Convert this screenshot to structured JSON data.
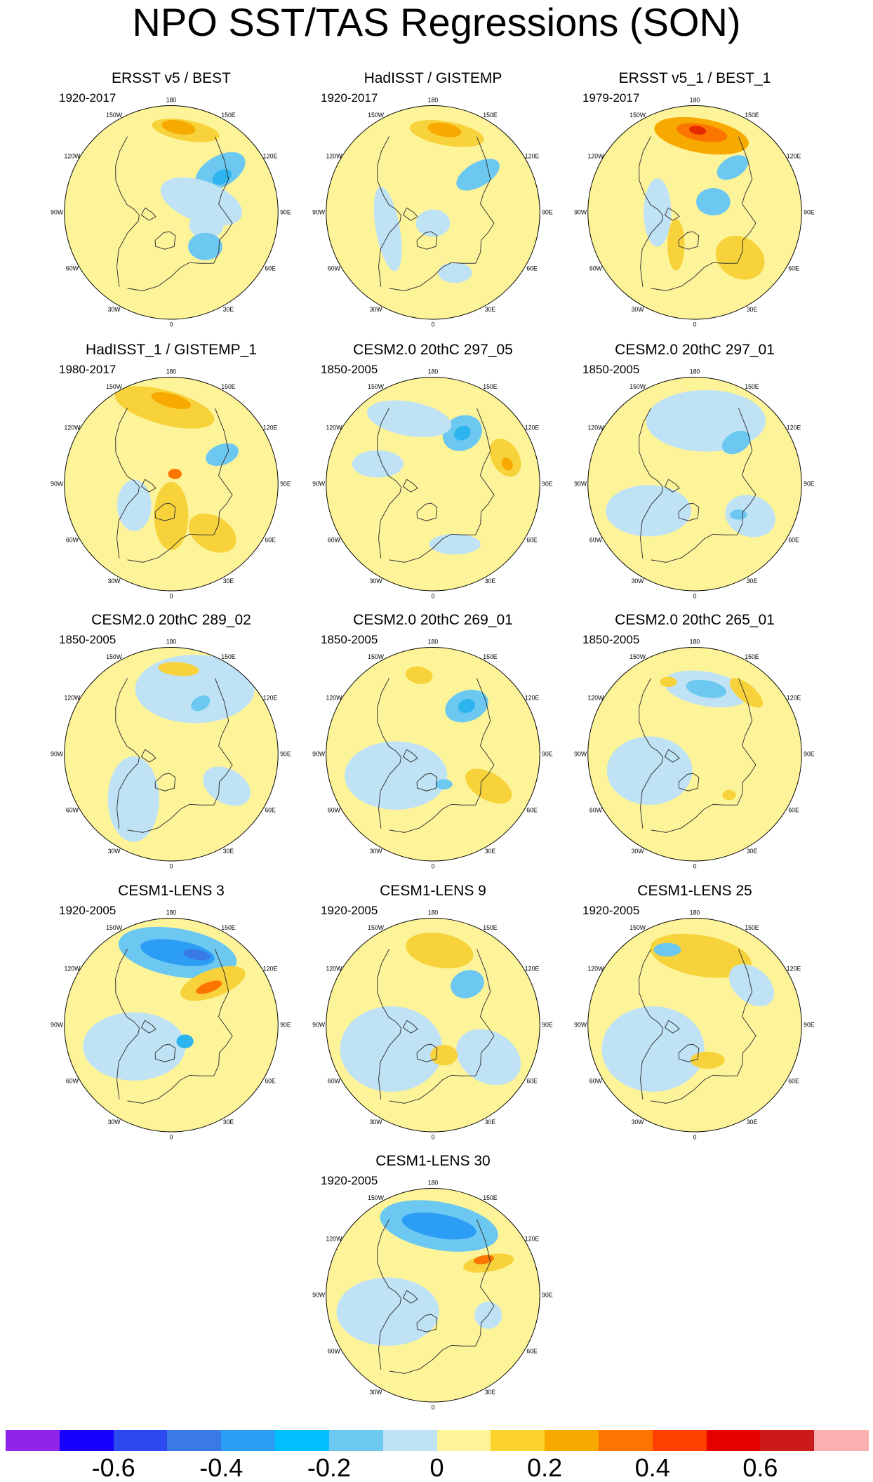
{
  "title": "NPO SST/TAS Regressions (SON)",
  "map_labels": {
    "top": "180",
    "upper_left": "150W",
    "upper_right": "150E",
    "mid_upper_left": "120W",
    "mid_upper_right": "120E",
    "left": "90W",
    "right": "90E",
    "mid_lower_left": "60W",
    "mid_lower_right": "60E",
    "lower_left": "30W",
    "lower_right": "30E",
    "bottom": "0"
  },
  "panels": [
    {
      "title": "ERSST v5 / BEST",
      "years": "1920-2017",
      "blobs": [
        {
          "a": 130,
          "d": 0.6,
          "rx": 0.16,
          "ry": 0.09,
          "rot": -30,
          "c": "#6cc8f0"
        },
        {
          "a": 125,
          "d": 0.58,
          "rx": 0.06,
          "ry": 0.04,
          "rot": -30,
          "c": "#2cb4ee"
        },
        {
          "a": 170,
          "d": 0.78,
          "rx": 0.2,
          "ry": 0.06,
          "rot": 10,
          "c": "#f8d23a"
        },
        {
          "a": 175,
          "d": 0.8,
          "rx": 0.1,
          "ry": 0.04,
          "rot": 10,
          "c": "#f7a900"
        },
        {
          "a": 110,
          "d": 0.3,
          "rx": 0.25,
          "ry": 0.12,
          "rot": 20,
          "c": "#bfe2f5"
        },
        {
          "a": 70,
          "d": 0.35,
          "rx": 0.1,
          "ry": 0.08,
          "rot": 0,
          "c": "#bfe2f5"
        },
        {
          "a": 45,
          "d": 0.45,
          "rx": 0.1,
          "ry": 0.08,
          "rot": 0,
          "c": "#6cc8f0"
        }
      ]
    },
    {
      "title": "HadISST / GISTEMP",
      "years": "1920-2017",
      "blobs": [
        {
          "a": 130,
          "d": 0.55,
          "rx": 0.14,
          "ry": 0.07,
          "rot": -30,
          "c": "#6cc8f0"
        },
        {
          "a": 170,
          "d": 0.75,
          "rx": 0.22,
          "ry": 0.07,
          "rot": 10,
          "c": "#f8d23a"
        },
        {
          "a": 172,
          "d": 0.78,
          "rx": 0.1,
          "ry": 0.04,
          "rot": 10,
          "c": "#f7a900"
        },
        {
          "a": 290,
          "d": 0.45,
          "rx": 0.07,
          "ry": 0.25,
          "rot": -10,
          "c": "#bfe2f5"
        },
        {
          "a": 20,
          "d": 0.6,
          "rx": 0.1,
          "ry": 0.06,
          "rot": 0,
          "c": "#bfe2f5"
        },
        {
          "a": 0,
          "d": 0.1,
          "rx": 0.1,
          "ry": 0.08,
          "rot": 0,
          "c": "#bfe2f5"
        }
      ]
    },
    {
      "title": "ERSST v5_1 / BEST_1",
      "years": "1979-2017",
      "blobs": [
        {
          "a": 175,
          "d": 0.72,
          "rx": 0.28,
          "ry": 0.1,
          "rot": 10,
          "c": "#f7a900"
        },
        {
          "a": 175,
          "d": 0.75,
          "rx": 0.15,
          "ry": 0.05,
          "rot": 10,
          "c": "#fb7500"
        },
        {
          "a": 178,
          "d": 0.77,
          "rx": 0.05,
          "ry": 0.025,
          "rot": 10,
          "c": "#e62b00"
        },
        {
          "a": 140,
          "d": 0.55,
          "rx": 0.1,
          "ry": 0.06,
          "rot": -30,
          "c": "#6cc8f0"
        },
        {
          "a": 45,
          "d": 0.6,
          "rx": 0.15,
          "ry": 0.12,
          "rot": 30,
          "c": "#f8d23a"
        },
        {
          "a": 120,
          "d": 0.2,
          "rx": 0.1,
          "ry": 0.08,
          "rot": 0,
          "c": "#6cc8f0"
        },
        {
          "a": 270,
          "d": 0.35,
          "rx": 0.08,
          "ry": 0.2,
          "rot": 0,
          "c": "#bfe2f5"
        },
        {
          "a": 330,
          "d": 0.35,
          "rx": 0.05,
          "ry": 0.15,
          "rot": 0,
          "c": "#f8d23a"
        }
      ]
    },
    {
      "title": "HadISST_1 / GISTEMP_1",
      "years": "1980-2017",
      "blobs": [
        {
          "a": 185,
          "d": 0.72,
          "rx": 0.3,
          "ry": 0.1,
          "rot": 15,
          "c": "#f8d23a"
        },
        {
          "a": 180,
          "d": 0.78,
          "rx": 0.12,
          "ry": 0.04,
          "rot": 15,
          "c": "#f7a900"
        },
        {
          "a": 120,
          "d": 0.55,
          "rx": 0.1,
          "ry": 0.06,
          "rot": -20,
          "c": "#6cc8f0"
        },
        {
          "a": 0,
          "d": 0.3,
          "rx": 0.1,
          "ry": 0.2,
          "rot": 0,
          "c": "#f8d23a"
        },
        {
          "a": 40,
          "d": 0.6,
          "rx": 0.15,
          "ry": 0.1,
          "rot": 30,
          "c": "#f8d23a"
        },
        {
          "a": 300,
          "d": 0.4,
          "rx": 0.1,
          "ry": 0.15,
          "rot": 0,
          "c": "#bfe2f5"
        },
        {
          "a": 160,
          "d": 0.1,
          "rx": 0.04,
          "ry": 0.03,
          "rot": 0,
          "c": "#fb7500"
        }
      ]
    },
    {
      "title": "CESM2.0 20thC 297_05",
      "years": "1850-2005",
      "blobs": [
        {
          "a": 150,
          "d": 0.55,
          "rx": 0.12,
          "ry": 0.1,
          "rot": -30,
          "c": "#6cc8f0"
        },
        {
          "a": 150,
          "d": 0.55,
          "rx": 0.05,
          "ry": 0.04,
          "rot": -30,
          "c": "#2cb4ee"
        },
        {
          "a": 110,
          "d": 0.72,
          "rx": 0.12,
          "ry": 0.08,
          "rot": 60,
          "c": "#f8d23a"
        },
        {
          "a": 105,
          "d": 0.72,
          "rx": 0.04,
          "ry": 0.03,
          "rot": 60,
          "c": "#f7a900"
        },
        {
          "a": 200,
          "d": 0.65,
          "rx": 0.25,
          "ry": 0.1,
          "rot": 10,
          "c": "#bfe2f5"
        },
        {
          "a": 250,
          "d": 0.55,
          "rx": 0.15,
          "ry": 0.08,
          "rot": 0,
          "c": "#bfe2f5"
        },
        {
          "a": 20,
          "d": 0.6,
          "rx": 0.15,
          "ry": 0.06,
          "rot": 0,
          "c": "#bfe2f5"
        }
      ]
    },
    {
      "title": "CESM2.0 20thC 297_01",
      "years": "1850-2005",
      "blobs": [
        {
          "a": 170,
          "d": 0.6,
          "rx": 0.35,
          "ry": 0.18,
          "rot": 0,
          "c": "#bfe2f5"
        },
        {
          "a": 135,
          "d": 0.55,
          "rx": 0.09,
          "ry": 0.06,
          "rot": -30,
          "c": "#6cc8f0"
        },
        {
          "a": 60,
          "d": 0.6,
          "rx": 0.15,
          "ry": 0.12,
          "rot": 20,
          "c": "#bfe2f5"
        },
        {
          "a": 300,
          "d": 0.5,
          "rx": 0.25,
          "ry": 0.15,
          "rot": 0,
          "c": "#bfe2f5"
        },
        {
          "a": 55,
          "d": 0.5,
          "rx": 0.05,
          "ry": 0.03,
          "rot": 0,
          "c": "#6cc8f0"
        }
      ]
    },
    {
      "title": "CESM2.0 20thC 289_02",
      "years": "1850-2005",
      "blobs": [
        {
          "a": 160,
          "d": 0.65,
          "rx": 0.35,
          "ry": 0.2,
          "rot": 0,
          "c": "#bfe2f5"
        },
        {
          "a": 150,
          "d": 0.55,
          "rx": 0.06,
          "ry": 0.04,
          "rot": -30,
          "c": "#6cc8f0"
        },
        {
          "a": 175,
          "d": 0.8,
          "rx": 0.12,
          "ry": 0.04,
          "rot": 5,
          "c": "#f8d23a"
        },
        {
          "a": 320,
          "d": 0.55,
          "rx": 0.15,
          "ry": 0.25,
          "rot": 0,
          "c": "#bfe2f5"
        },
        {
          "a": 60,
          "d": 0.6,
          "rx": 0.15,
          "ry": 0.1,
          "rot": 30,
          "c": "#bfe2f5"
        }
      ]
    },
    {
      "title": "CESM2.0 20thC 269_01",
      "years": "1850-2005",
      "blobs": [
        {
          "a": 145,
          "d": 0.55,
          "rx": 0.13,
          "ry": 0.09,
          "rot": -20,
          "c": "#6cc8f0"
        },
        {
          "a": 145,
          "d": 0.55,
          "rx": 0.05,
          "ry": 0.04,
          "rot": -20,
          "c": "#2cb4ee"
        },
        {
          "a": 190,
          "d": 0.75,
          "rx": 0.08,
          "ry": 0.05,
          "rot": 10,
          "c": "#f8d23a"
        },
        {
          "a": 60,
          "d": 0.6,
          "rx": 0.15,
          "ry": 0.08,
          "rot": 30,
          "c": "#f8d23a"
        },
        {
          "a": 300,
          "d": 0.4,
          "rx": 0.3,
          "ry": 0.2,
          "rot": 0,
          "c": "#bfe2f5"
        },
        {
          "a": 20,
          "d": 0.3,
          "rx": 0.05,
          "ry": 0.03,
          "rot": 0,
          "c": "#6cc8f0"
        }
      ]
    },
    {
      "title": "CESM2.0 20thC 265_01",
      "years": "1850-2005",
      "blobs": [
        {
          "a": 170,
          "d": 0.62,
          "rx": 0.25,
          "ry": 0.1,
          "rot": 10,
          "c": "#bfe2f5"
        },
        {
          "a": 170,
          "d": 0.62,
          "rx": 0.12,
          "ry": 0.05,
          "rot": 10,
          "c": "#6cc8f0"
        },
        {
          "a": 140,
          "d": 0.75,
          "rx": 0.12,
          "ry": 0.05,
          "rot": 40,
          "c": "#f8d23a"
        },
        {
          "a": 200,
          "d": 0.72,
          "rx": 0.05,
          "ry": 0.03,
          "rot": 0,
          "c": "#f8d23a"
        },
        {
          "a": 290,
          "d": 0.45,
          "rx": 0.25,
          "ry": 0.2,
          "rot": 0,
          "c": "#bfe2f5"
        },
        {
          "a": 40,
          "d": 0.5,
          "rx": 0.04,
          "ry": 0.03,
          "rot": 0,
          "c": "#f8d23a"
        }
      ]
    },
    {
      "title": "CESM1-LENS 3",
      "years": "1920-2005",
      "blobs": [
        {
          "a": 175,
          "d": 0.68,
          "rx": 0.35,
          "ry": 0.14,
          "rot": 10,
          "c": "#6cc8f0"
        },
        {
          "a": 175,
          "d": 0.68,
          "rx": 0.22,
          "ry": 0.07,
          "rot": 10,
          "c": "#2c9df5"
        },
        {
          "a": 160,
          "d": 0.7,
          "rx": 0.08,
          "ry": 0.03,
          "rot": 10,
          "c": "#3a7ae6"
        },
        {
          "a": 135,
          "d": 0.55,
          "rx": 0.2,
          "ry": 0.08,
          "rot": -20,
          "c": "#f8d23a"
        },
        {
          "a": 135,
          "d": 0.5,
          "rx": 0.08,
          "ry": 0.03,
          "rot": -20,
          "c": "#fb7500"
        },
        {
          "a": 300,
          "d": 0.4,
          "rx": 0.3,
          "ry": 0.2,
          "rot": 0,
          "c": "#bfe2f5"
        },
        {
          "a": 40,
          "d": 0.2,
          "rx": 0.05,
          "ry": 0.04,
          "rot": 0,
          "c": "#2cb4ee"
        }
      ]
    },
    {
      "title": "CESM1-LENS 9",
      "years": "1920-2005",
      "blobs": [
        {
          "a": 175,
          "d": 0.7,
          "rx": 0.12,
          "ry": 0.06,
          "rot": 10,
          "c": "#f7a900"
        },
        {
          "a": 175,
          "d": 0.7,
          "rx": 0.2,
          "ry": 0.1,
          "rot": 10,
          "c": "#f8d23a"
        },
        {
          "a": 140,
          "d": 0.5,
          "rx": 0.1,
          "ry": 0.08,
          "rot": -20,
          "c": "#6cc8f0"
        },
        {
          "a": 60,
          "d": 0.6,
          "rx": 0.2,
          "ry": 0.15,
          "rot": 30,
          "c": "#bfe2f5"
        },
        {
          "a": 300,
          "d": 0.45,
          "rx": 0.3,
          "ry": 0.25,
          "rot": 0,
          "c": "#bfe2f5"
        },
        {
          "a": 20,
          "d": 0.3,
          "rx": 0.08,
          "ry": 0.06,
          "rot": 0,
          "c": "#f8d23a"
        }
      ]
    },
    {
      "title": "CESM1-LENS 25",
      "years": "1920-2005",
      "blobs": [
        {
          "a": 175,
          "d": 0.65,
          "rx": 0.22,
          "ry": 0.07,
          "rot": 10,
          "c": "#f7a900"
        },
        {
          "a": 175,
          "d": 0.65,
          "rx": 0.3,
          "ry": 0.12,
          "rot": 10,
          "c": "#f8d23a"
        },
        {
          "a": 125,
          "d": 0.65,
          "rx": 0.15,
          "ry": 0.1,
          "rot": 40,
          "c": "#bfe2f5"
        },
        {
          "a": 200,
          "d": 0.75,
          "rx": 0.08,
          "ry": 0.04,
          "rot": 0,
          "c": "#6cc8f0"
        },
        {
          "a": 300,
          "d": 0.45,
          "rx": 0.3,
          "ry": 0.25,
          "rot": 0,
          "c": "#bfe2f5"
        },
        {
          "a": 20,
          "d": 0.35,
          "rx": 0.1,
          "ry": 0.05,
          "rot": 0,
          "c": "#f8d23a"
        }
      ]
    },
    {
      "title": "CESM1-LENS 30",
      "years": "1920-2005",
      "blobs": [
        {
          "a": 175,
          "d": 0.65,
          "rx": 0.35,
          "ry": 0.14,
          "rot": 10,
          "c": "#6cc8f0"
        },
        {
          "a": 175,
          "d": 0.65,
          "rx": 0.22,
          "ry": 0.07,
          "rot": 10,
          "c": "#2c9df5"
        },
        {
          "a": 120,
          "d": 0.6,
          "rx": 0.15,
          "ry": 0.05,
          "rot": -10,
          "c": "#f8d23a"
        },
        {
          "a": 125,
          "d": 0.58,
          "rx": 0.06,
          "ry": 0.025,
          "rot": -10,
          "c": "#fb7500"
        },
        {
          "a": 290,
          "d": 0.45,
          "rx": 0.3,
          "ry": 0.2,
          "rot": 0,
          "c": "#bfe2f5"
        },
        {
          "a": 70,
          "d": 0.55,
          "rx": 0.08,
          "ry": 0.08,
          "rot": 0,
          "c": "#bfe2f5"
        }
      ]
    }
  ],
  "colorbar": {
    "colors": [
      "#8e25e8",
      "#1800ff",
      "#2c49ef",
      "#3a7ae6",
      "#2c9df5",
      "#00c0ff",
      "#6cc8f0",
      "#bfe2f5",
      "#fdf49a",
      "#fcd22d",
      "#f7a900",
      "#fb7500",
      "#fd3f00",
      "#e60000",
      "#cc1a1a",
      "#fbb0b0"
    ],
    "ticks": [
      "-0.6",
      "-0.4",
      "-0.2",
      "0",
      "0.2",
      "0.4",
      "0.6"
    ],
    "tick_after_boundary": [
      2,
      4,
      6,
      8,
      10,
      12,
      14
    ]
  }
}
